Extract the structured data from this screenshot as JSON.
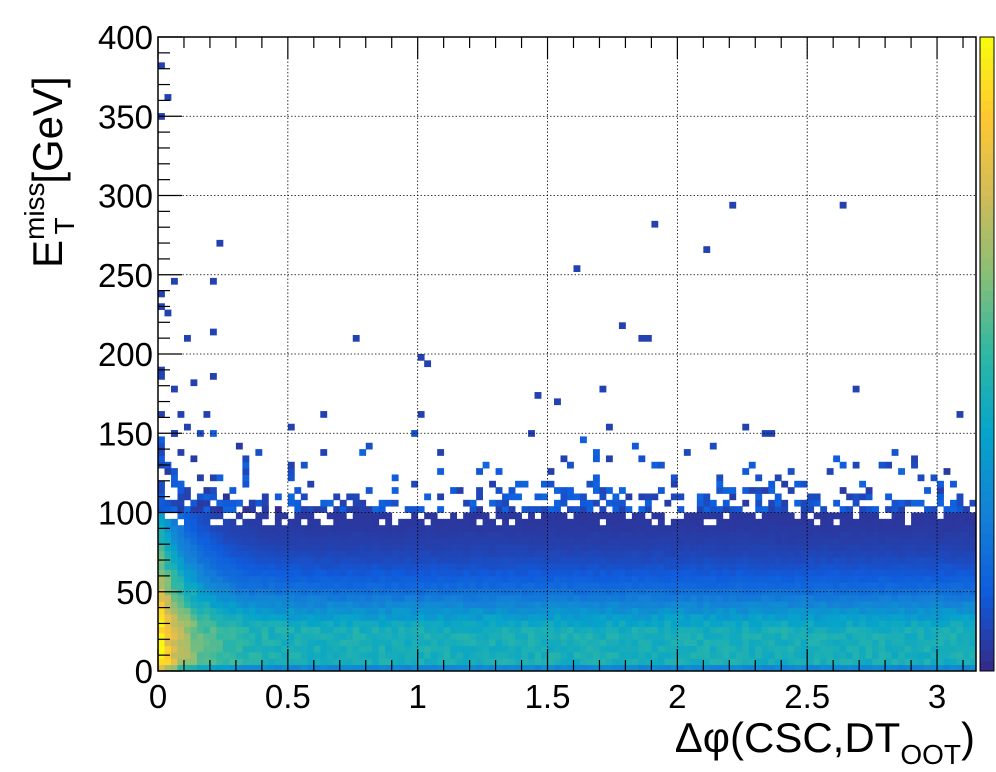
{
  "chart_data": {
    "type": "heatmap",
    "title": "",
    "xlabel": {
      "main": "Δφ(CSC,DT",
      "sub": "OOT",
      "close": ")"
    },
    "ylabel": {
      "main": "E",
      "sup": "miss",
      "sub": "T",
      "unit": " [GeV]"
    },
    "xlim": [
      0,
      3.15
    ],
    "ylim": [
      0,
      400
    ],
    "x_tick_labels": [
      "0",
      "0.5",
      "1",
      "1.5",
      "2",
      "2.5",
      "3"
    ],
    "x_ticks": [
      0,
      0.5,
      1,
      1.5,
      2,
      2.5,
      3
    ],
    "y_tick_labels": [
      "0",
      "50",
      "100",
      "150",
      "200",
      "250",
      "300",
      "350",
      "400"
    ],
    "y_ticks": [
      0,
      50,
      100,
      150,
      200,
      250,
      300,
      350,
      400
    ],
    "grid": true,
    "colormap": "kBird",
    "colors": {
      "colormap_stops": [
        "#352a87",
        "#0f5cdd",
        "#1481d6",
        "#06a4ca",
        "#2eb7a4",
        "#87bf77",
        "#d1bb59",
        "#fec832",
        "#f9fb0e"
      ]
    },
    "bins": {
      "nx": 126,
      "ny": 100,
      "x_width": 0.025,
      "y_width": 4
    },
    "density_description": "dense core at low MET and small delta-phi, falling with MET; sparse isolated bins above 100 GeV",
    "isolated_points": [
      [
        0.01,
        380
      ],
      [
        0.04,
        362
      ],
      [
        0.01,
        350
      ],
      [
        0.24,
        270
      ],
      [
        0.07,
        246
      ],
      [
        0.2,
        246
      ],
      [
        0.01,
        238
      ],
      [
        0.02,
        230
      ],
      [
        0.03,
        225
      ],
      [
        0.2,
        215
      ],
      [
        0.11,
        210
      ],
      [
        0.76,
        210
      ],
      [
        1.01,
        199
      ],
      [
        1.04,
        195
      ],
      [
        0.01,
        190
      ],
      [
        0.01,
        186
      ],
      [
        0.2,
        186
      ],
      [
        0.15,
        183
      ],
      [
        0.07,
        178
      ],
      [
        1.92,
        282
      ],
      [
        2.21,
        294
      ],
      [
        2.64,
        294
      ],
      [
        2.11,
        266
      ],
      [
        1.62,
        254
      ],
      [
        1.79,
        218
      ],
      [
        1.86,
        210
      ],
      [
        1.89,
        210
      ],
      [
        1.71,
        178
      ],
      [
        2.69,
        178
      ],
      [
        1.47,
        175
      ],
      [
        1.54,
        170
      ],
      [
        0.01,
        162
      ],
      [
        0.08,
        162
      ],
      [
        0.18,
        162
      ],
      [
        0.63,
        162
      ],
      [
        1.02,
        162
      ],
      [
        3.08,
        162
      ],
      [
        1.74,
        154
      ],
      [
        2.26,
        154
      ],
      [
        0.06,
        150
      ],
      [
        0.1,
        154
      ],
      [
        0.5,
        154
      ],
      [
        1.44,
        150
      ],
      [
        2.36,
        150
      ]
    ]
  }
}
